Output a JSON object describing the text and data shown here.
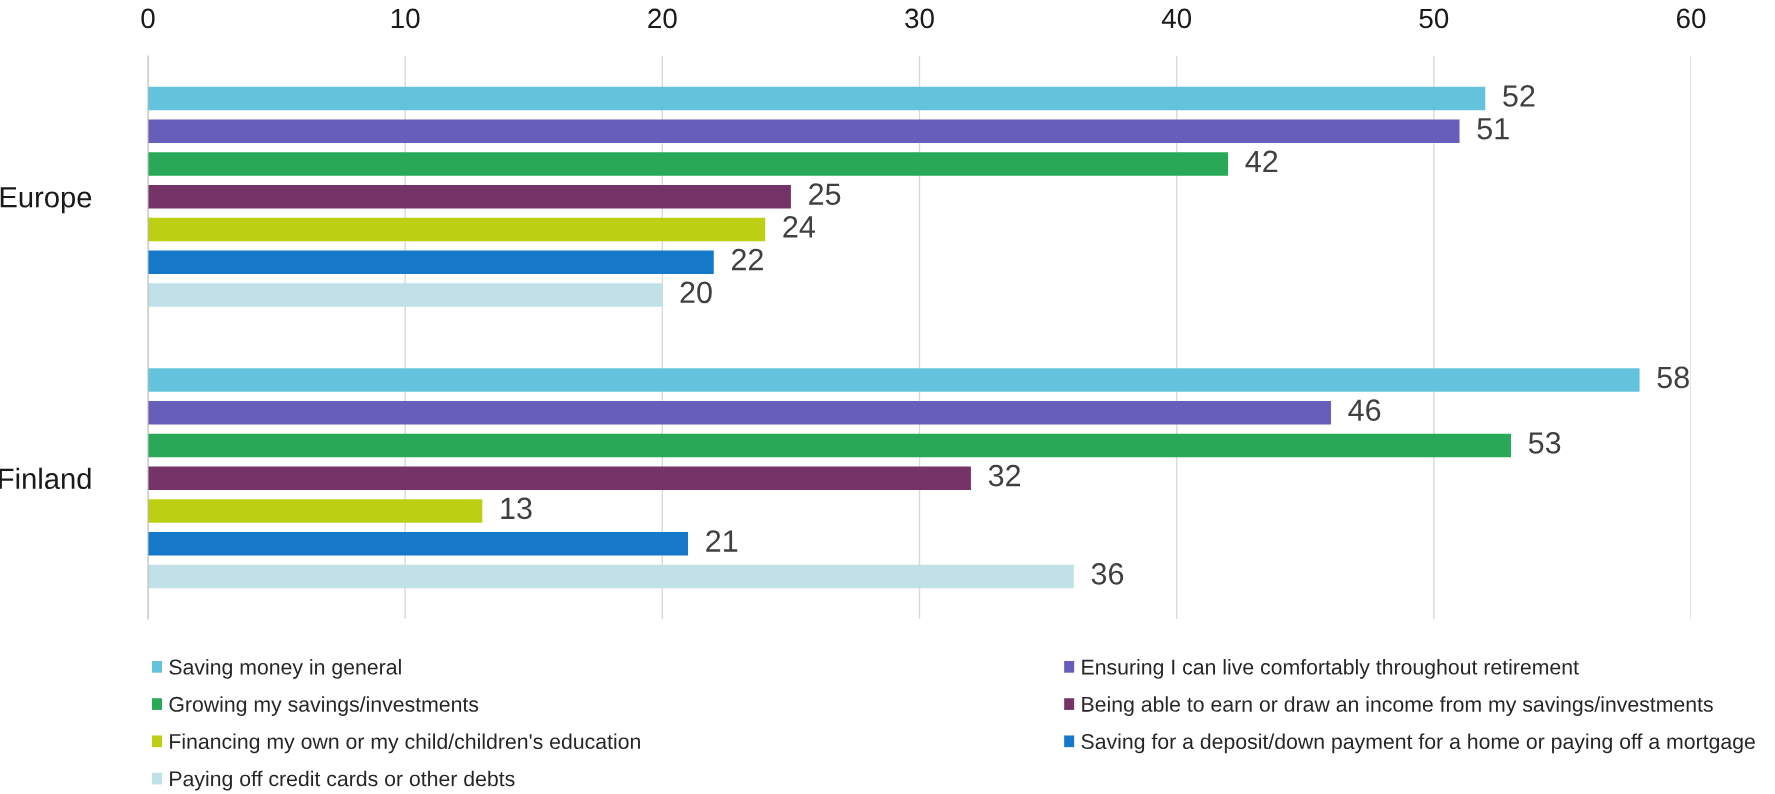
{
  "chart_data": {
    "type": "bar",
    "orientation": "horizontal",
    "categories": [
      "Europe",
      "Finland"
    ],
    "series": [
      {
        "name": "Saving money in general",
        "color": "#64c3dc",
        "values": [
          52,
          58
        ]
      },
      {
        "name": "Ensuring I can live comfortably throughout retirement",
        "color": "#675dba",
        "values": [
          51,
          46
        ]
      },
      {
        "name": "Growing my savings/investments",
        "color": "#29a857",
        "values": [
          42,
          53
        ]
      },
      {
        "name": "Being able to earn or draw an income from my savings/investments",
        "color": "#753467",
        "values": [
          25,
          32
        ]
      },
      {
        "name": "Financing my own or my child/children's education",
        "color": "#bccf12",
        "values": [
          24,
          13
        ]
      },
      {
        "name": "Saving for a deposit/down payment for a home or paying off a mortgage",
        "color": "#1578c8",
        "values": [
          22,
          21
        ]
      },
      {
        "name": "Paying off credit cards or other debts",
        "color": "#bfe1e7",
        "values": [
          20,
          36
        ]
      }
    ],
    "xlim": [
      0,
      60
    ],
    "xticks": [
      0,
      10,
      20,
      30,
      40,
      50,
      60
    ],
    "grid": "x",
    "legend": "bottom",
    "data_labels": true
  }
}
